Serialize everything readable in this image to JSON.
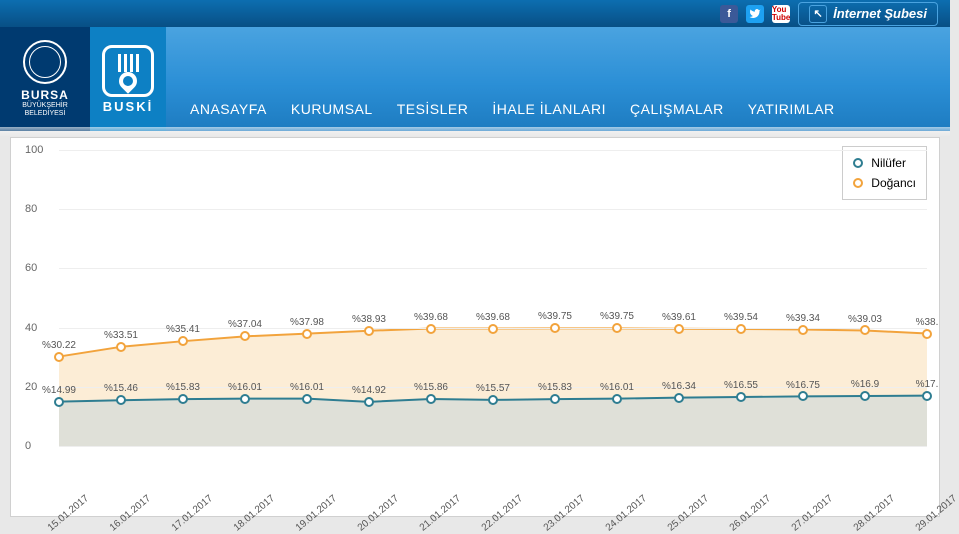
{
  "topbar": {
    "internet_label": "İnternet Şubesi"
  },
  "logos": {
    "bursa_title": "BURSA",
    "bursa_sub1": "BÜYÜKŞEHİR",
    "bursa_sub2": "BELEDİYESİ",
    "buski_title": "BUSKİ"
  },
  "nav": {
    "items": [
      "ANASAYFA",
      "KURUMSAL",
      "TESİSLER",
      "İHALE İLANLARI",
      "ÇALIŞMALAR",
      "YATIRIMLAR"
    ]
  },
  "chart": {
    "type": "line-area",
    "ylim": [
      0,
      100
    ],
    "yticks": [
      0,
      20,
      40,
      60,
      80,
      100
    ],
    "grid_color": "#eeeeee",
    "background_color": "#ffffff",
    "label_fontsize": 11,
    "categories": [
      "15.01.2017",
      "16.01.2017",
      "17.01.2017",
      "18.01.2017",
      "19.01.2017",
      "20.01.2017",
      "21.01.2017",
      "22.01.2017",
      "23.01.2017",
      "24.01.2017",
      "25.01.2017",
      "26.01.2017",
      "27.01.2017",
      "28.01.2017",
      "29.01.2017"
    ],
    "series": [
      {
        "name": "Nilüfer",
        "color": "#2e7d91",
        "fill": "#c7d6da",
        "fill_opacity": 0.55,
        "values": [
          14.99,
          15.46,
          15.83,
          16.01,
          16.01,
          14.92,
          15.86,
          15.57,
          15.83,
          16.01,
          16.34,
          16.55,
          16.75,
          16.9,
          17
        ],
        "last_label_override": "%17."
      },
      {
        "name": "Doğancı",
        "color": "#f2a33c",
        "fill": "#fbe5c4",
        "fill_opacity": 0.7,
        "values": [
          30.22,
          33.51,
          35.41,
          37.04,
          37.98,
          38.93,
          39.68,
          39.68,
          39.75,
          39.75,
          39.61,
          39.54,
          39.34,
          39.03,
          38
        ],
        "last_label_override": "%38."
      }
    ],
    "legend": {
      "border_color": "#cccccc",
      "position": "top-right"
    }
  }
}
